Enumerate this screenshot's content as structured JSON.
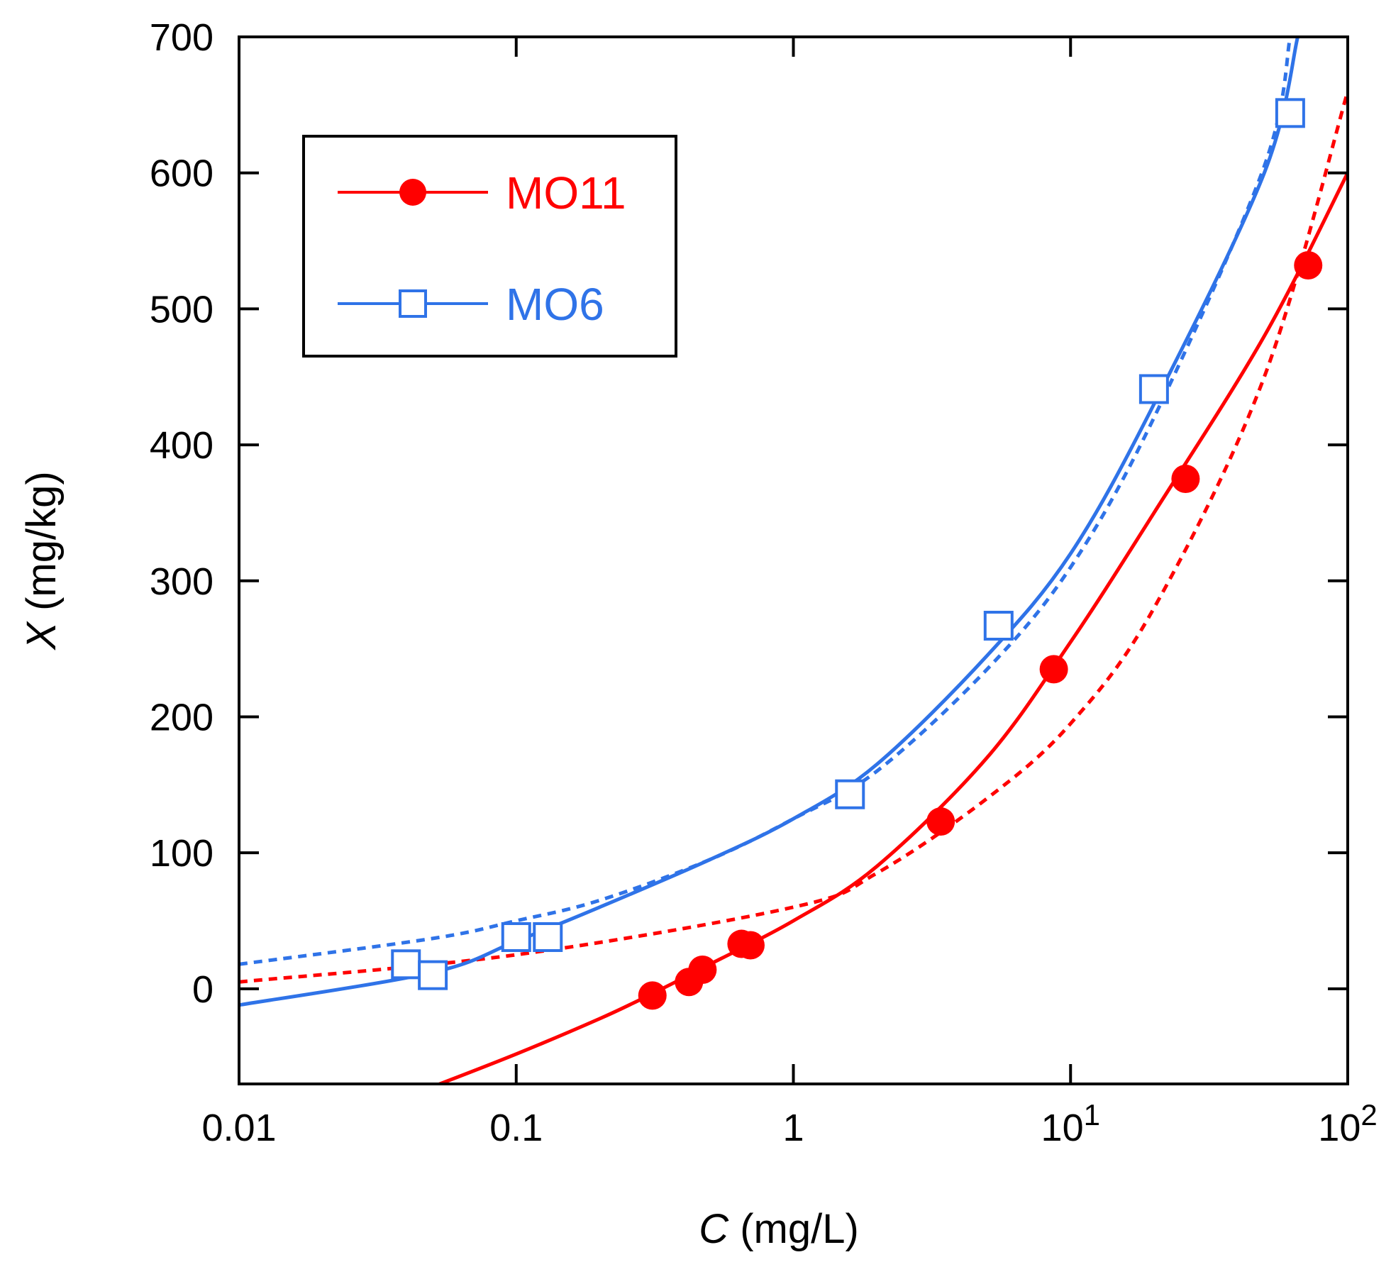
{
  "chart_data": {
    "type": "scatter",
    "xscale": "log",
    "xlim": [
      0.01,
      100
    ],
    "ylim": [
      -70,
      700
    ],
    "xlabel": {
      "var": "C",
      "unit": " (mg/L)"
    },
    "ylabel": {
      "var": "X",
      "unit": " (mg/kg)"
    },
    "xticks": [
      {
        "value": 0.01,
        "label": "0.01"
      },
      {
        "value": 0.1,
        "label": "0.1"
      },
      {
        "value": 1,
        "label": "1"
      },
      {
        "value": 10,
        "label": "10",
        "sup": "1"
      },
      {
        "value": 100,
        "label": "10",
        "sup": "2"
      }
    ],
    "yticks": [
      {
        "value": 0,
        "label": "0"
      },
      {
        "value": 100,
        "label": "100"
      },
      {
        "value": 200,
        "label": "200"
      },
      {
        "value": 300,
        "label": "300"
      },
      {
        "value": 400,
        "label": "400"
      },
      {
        "value": 500,
        "label": "500"
      },
      {
        "value": 600,
        "label": "600"
      },
      {
        "value": 700,
        "label": "700"
      }
    ],
    "legend": {
      "position": "top-left"
    },
    "series": [
      {
        "name": "MO11",
        "color": "#ff0000",
        "marker": "filled-circle",
        "points": [
          [
            0.31,
            -5
          ],
          [
            0.42,
            5
          ],
          [
            0.47,
            14
          ],
          [
            0.65,
            33
          ],
          [
            0.7,
            32
          ],
          [
            3.4,
            123
          ],
          [
            8.7,
            235
          ],
          [
            26,
            375
          ],
          [
            72,
            532
          ]
        ],
        "fit_solid": [
          [
            0.05,
            -72
          ],
          [
            0.1,
            -48
          ],
          [
            0.2,
            -22
          ],
          [
            0.3,
            -5
          ],
          [
            0.5,
            18
          ],
          [
            1,
            50
          ],
          [
            2,
            90
          ],
          [
            5,
            170
          ],
          [
            10,
            255
          ],
          [
            20,
            350
          ],
          [
            50,
            480
          ],
          [
            100,
            600
          ]
        ],
        "fit_dashed": [
          [
            0.01,
            5
          ],
          [
            0.1,
            25
          ],
          [
            1,
            60
          ],
          [
            2,
            85
          ],
          [
            5,
            140
          ],
          [
            10,
            195
          ],
          [
            20,
            280
          ],
          [
            50,
            450
          ],
          [
            100,
            660
          ]
        ]
      },
      {
        "name": "MO6",
        "color": "#2f73e8",
        "marker": "open-square",
        "points": [
          [
            0.04,
            18
          ],
          [
            0.05,
            10
          ],
          [
            0.1,
            38
          ],
          [
            0.13,
            38
          ],
          [
            1.6,
            143
          ],
          [
            5.5,
            267
          ],
          [
            20,
            441
          ],
          [
            62,
            644
          ]
        ],
        "fit_solid": [
          [
            0.01,
            -12
          ],
          [
            0.05,
            12
          ],
          [
            0.1,
            35
          ],
          [
            0.2,
            60
          ],
          [
            0.5,
            95
          ],
          [
            1,
            125
          ],
          [
            2,
            165
          ],
          [
            5,
            245
          ],
          [
            10,
            320
          ],
          [
            20,
            430
          ],
          [
            50,
            600
          ],
          [
            66,
            700
          ]
        ],
        "fit_dashed": [
          [
            0.01,
            18
          ],
          [
            0.05,
            37
          ],
          [
            0.1,
            50
          ],
          [
            0.2,
            65
          ],
          [
            0.5,
            95
          ],
          [
            1,
            125
          ],
          [
            2,
            160
          ],
          [
            5,
            235
          ],
          [
            10,
            310
          ],
          [
            20,
            420
          ],
          [
            50,
            605
          ],
          [
            62,
            700
          ]
        ]
      }
    ]
  }
}
